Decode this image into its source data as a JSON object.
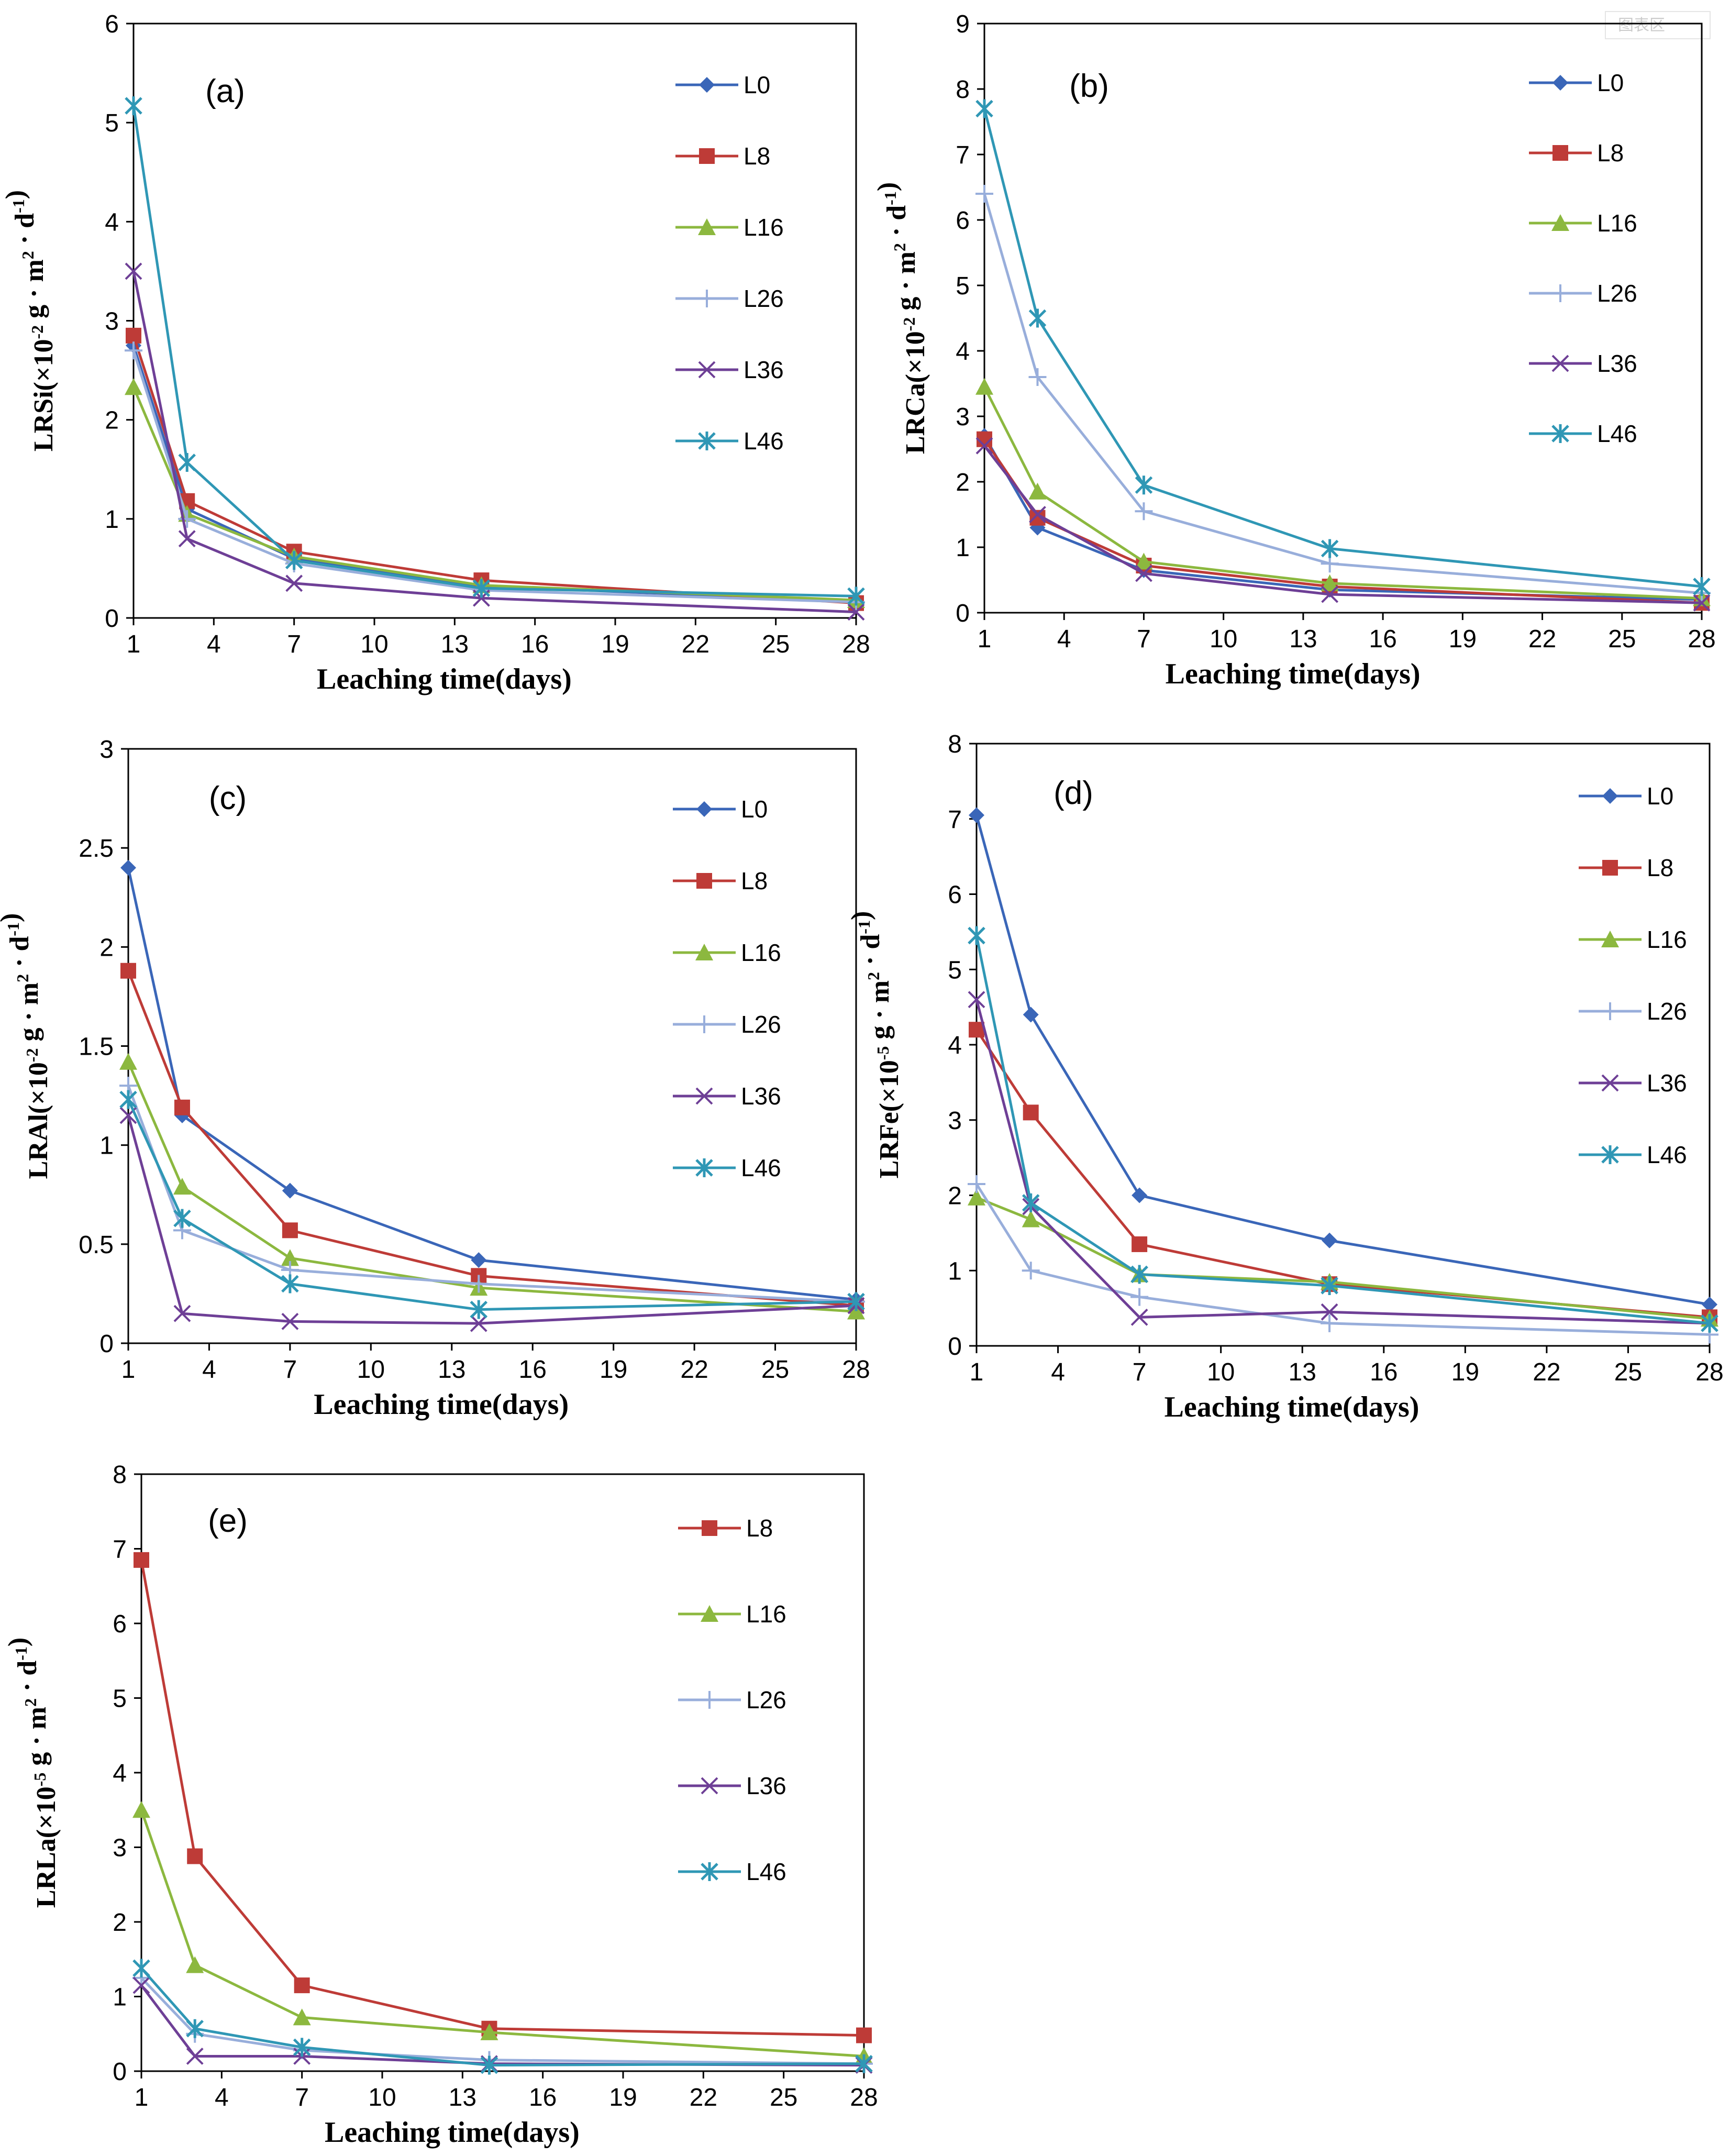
{
  "watermark": "图表区",
  "chart_data": [
    {
      "id": "a",
      "type": "line",
      "panel_label": "(a)",
      "xlabel": "Leaching time(days)",
      "ylabel": {
        "prefix": "LRSi(×10",
        "exp": "-2",
        "mid": " g · m",
        "exp2": "2",
        "mid2": " · d",
        "exp3": "-1",
        "suffix": ")"
      },
      "xlim": [
        1,
        28
      ],
      "xticks": [
        1,
        4,
        7,
        10,
        13,
        16,
        19,
        22,
        25,
        28
      ],
      "ylim": [
        0,
        6
      ],
      "yticks": [
        0,
        1,
        2,
        3,
        4,
        5,
        6
      ],
      "x": [
        1,
        3,
        7,
        14,
        28
      ],
      "series": [
        {
          "name": "L0",
          "values": [
            2.75,
            1.1,
            0.6,
            0.32,
            0.17
          ]
        },
        {
          "name": "L8",
          "values": [
            2.85,
            1.18,
            0.67,
            0.38,
            0.15
          ]
        },
        {
          "name": "L16",
          "values": [
            2.33,
            1.05,
            0.62,
            0.33,
            0.18
          ]
        },
        {
          "name": "L26",
          "values": [
            2.7,
            1.0,
            0.55,
            0.28,
            0.16
          ]
        },
        {
          "name": "L36",
          "values": [
            3.5,
            0.8,
            0.35,
            0.2,
            0.06
          ]
        },
        {
          "name": "L46",
          "values": [
            5.17,
            1.57,
            0.58,
            0.3,
            0.22
          ]
        }
      ]
    },
    {
      "id": "b",
      "type": "line",
      "panel_label": "(b)",
      "xlabel": "Leaching time(days)",
      "ylabel": {
        "prefix": "LRCa(×10",
        "exp": "-2",
        "mid": " g · m",
        "exp2": "2",
        "mid2": " · d",
        "exp3": "-1",
        "suffix": ")"
      },
      "xlim": [
        1,
        28
      ],
      "xticks": [
        1,
        4,
        7,
        10,
        13,
        16,
        19,
        22,
        25,
        28
      ],
      "ylim": [
        0,
        9
      ],
      "yticks": [
        0,
        1,
        2,
        3,
        4,
        5,
        6,
        7,
        8,
        9
      ],
      "x": [
        1,
        3,
        7,
        14,
        28
      ],
      "series": [
        {
          "name": "L0",
          "values": [
            2.7,
            1.3,
            0.65,
            0.35,
            0.2
          ]
        },
        {
          "name": "L8",
          "values": [
            2.65,
            1.45,
            0.72,
            0.4,
            0.15
          ]
        },
        {
          "name": "L16",
          "values": [
            3.45,
            1.85,
            0.78,
            0.45,
            0.22
          ]
        },
        {
          "name": "L26",
          "values": [
            6.4,
            3.6,
            1.55,
            0.75,
            0.3
          ]
        },
        {
          "name": "L36",
          "values": [
            2.55,
            1.5,
            0.6,
            0.28,
            0.15
          ]
        },
        {
          "name": "L46",
          "values": [
            7.7,
            4.5,
            1.95,
            0.98,
            0.4
          ]
        }
      ]
    },
    {
      "id": "c",
      "type": "line",
      "panel_label": "(c)",
      "xlabel": "Leaching time(days)",
      "ylabel": {
        "prefix": "LRAl(×10",
        "exp": "-2",
        "mid": " g · m",
        "exp2": "2",
        "mid2": " · d",
        "exp3": "-1",
        "suffix": ")"
      },
      "xlim": [
        1,
        28
      ],
      "xticks": [
        1,
        4,
        7,
        10,
        13,
        16,
        19,
        22,
        25,
        28
      ],
      "ylim": [
        0,
        3
      ],
      "yticks": [
        0,
        0.5,
        1,
        1.5,
        2,
        2.5,
        3
      ],
      "ytick_labels": [
        "0",
        "0.5",
        "1",
        "1.5",
        "2",
        "2.5",
        "3"
      ],
      "x": [
        1,
        3,
        7,
        14,
        28
      ],
      "series": [
        {
          "name": "L0",
          "values": [
            2.4,
            1.15,
            0.77,
            0.42,
            0.22
          ]
        },
        {
          "name": "L8",
          "values": [
            1.88,
            1.19,
            0.57,
            0.34,
            0.19
          ]
        },
        {
          "name": "L16",
          "values": [
            1.42,
            0.79,
            0.43,
            0.28,
            0.16
          ]
        },
        {
          "name": "L26",
          "values": [
            1.3,
            0.57,
            0.37,
            0.3,
            0.21
          ]
        },
        {
          "name": "L36",
          "values": [
            1.15,
            0.15,
            0.11,
            0.1,
            0.19
          ]
        },
        {
          "name": "L46",
          "values": [
            1.23,
            0.63,
            0.3,
            0.17,
            0.21
          ]
        }
      ]
    },
    {
      "id": "d",
      "type": "line",
      "panel_label": "(d)",
      "xlabel": "Leaching time(days)",
      "ylabel": {
        "prefix": "LRFe(×10",
        "exp": "-5",
        "mid": " g · m",
        "exp2": "2",
        "mid2": " · d",
        "exp3": "-1",
        "suffix": ")"
      },
      "xlim": [
        1,
        28
      ],
      "xticks": [
        1,
        4,
        7,
        10,
        13,
        16,
        19,
        22,
        25,
        28
      ],
      "ylim": [
        0,
        8
      ],
      "yticks": [
        0,
        1,
        2,
        3,
        4,
        5,
        6,
        7,
        8
      ],
      "x": [
        1,
        3,
        7,
        14,
        28
      ],
      "series": [
        {
          "name": "L0",
          "values": [
            7.05,
            4.4,
            2.0,
            1.4,
            0.55
          ]
        },
        {
          "name": "L8",
          "values": [
            4.2,
            3.1,
            1.35,
            0.82,
            0.38
          ]
        },
        {
          "name": "L16",
          "values": [
            1.97,
            1.68,
            0.95,
            0.85,
            0.36
          ]
        },
        {
          "name": "L26",
          "values": [
            2.15,
            1.0,
            0.65,
            0.3,
            0.15
          ]
        },
        {
          "name": "L36",
          "values": [
            4.6,
            1.85,
            0.38,
            0.45,
            0.3
          ]
        },
        {
          "name": "L46",
          "values": [
            5.45,
            1.9,
            0.95,
            0.8,
            0.3
          ]
        }
      ]
    },
    {
      "id": "e",
      "type": "line",
      "panel_label": "(e)",
      "xlabel": "Leaching time(days)",
      "ylabel": {
        "prefix": "LRLa(×10",
        "exp": "-5",
        "mid": " g · m",
        "exp2": "2",
        "mid2": " · d",
        "exp3": "-1",
        "suffix": ")"
      },
      "xlim": [
        1,
        28
      ],
      "xticks": [
        1,
        4,
        7,
        10,
        13,
        16,
        19,
        22,
        25,
        28
      ],
      "ylim": [
        0,
        8
      ],
      "yticks": [
        0,
        1,
        2,
        3,
        4,
        5,
        6,
        7,
        8
      ],
      "x": [
        1,
        3,
        7,
        14,
        28
      ],
      "series": [
        {
          "name": "L8",
          "values": [
            6.85,
            2.88,
            1.15,
            0.57,
            0.48
          ]
        },
        {
          "name": "L16",
          "values": [
            3.5,
            1.42,
            0.72,
            0.52,
            0.2
          ]
        },
        {
          "name": "L26",
          "values": [
            1.25,
            0.5,
            0.28,
            0.15,
            0.1
          ]
        },
        {
          "name": "L36",
          "values": [
            1.15,
            0.2,
            0.2,
            0.1,
            0.08
          ]
        },
        {
          "name": "L46",
          "values": [
            1.38,
            0.57,
            0.32,
            0.08,
            0.1
          ]
        }
      ]
    }
  ]
}
